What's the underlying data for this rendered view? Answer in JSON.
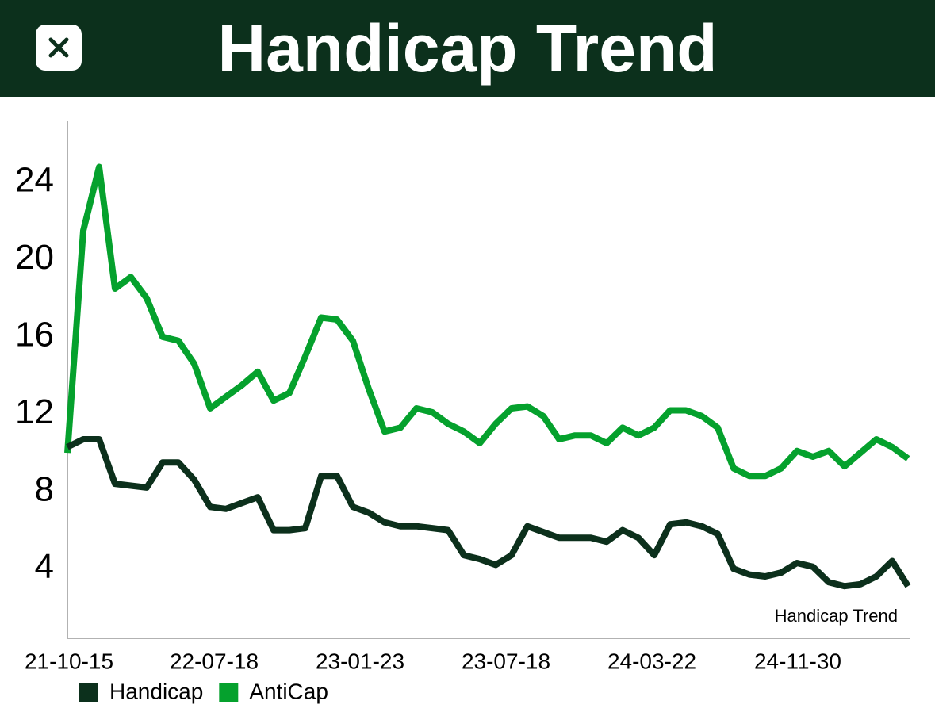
{
  "header": {
    "title": "Handicap Trend"
  },
  "chart_data": {
    "type": "line",
    "annotation": "Handicap Trend",
    "x": [
      0,
      1,
      2,
      3,
      4,
      5,
      6,
      7,
      8,
      9,
      10,
      11,
      12,
      13,
      14,
      15,
      16,
      17,
      18,
      19,
      20,
      21,
      22,
      23,
      24,
      25,
      26,
      27,
      28,
      29,
      30,
      31,
      32,
      33,
      34,
      35,
      36,
      37,
      38,
      39,
      40,
      41,
      42,
      43,
      44,
      45,
      46,
      47,
      48,
      49,
      50,
      51,
      52,
      53
    ],
    "xlim": [
      0,
      53.15
    ],
    "xticks": [
      {
        "value": 0,
        "label": "21-10-15"
      },
      {
        "value": 9.15,
        "label": "22-07-18"
      },
      {
        "value": 18.35,
        "label": "23-01-23"
      },
      {
        "value": 27.55,
        "label": "23-07-18"
      },
      {
        "value": 36.75,
        "label": "24-03-22"
      },
      {
        "value": 45.95,
        "label": "24-11-30"
      }
    ],
    "ylim": [
      0.4,
      27.2
    ],
    "yticks": [
      4,
      8,
      12,
      16,
      20,
      24
    ],
    "legend": "bottom-left",
    "series": [
      {
        "name": "Handicap",
        "color": "#0c301c",
        "values": [
          10.3,
          10.7,
          10.7,
          8.4,
          8.3,
          8.2,
          9.5,
          9.5,
          8.6,
          7.2,
          7.1,
          7.4,
          7.7,
          6.0,
          6.0,
          6.1,
          8.8,
          8.8,
          7.2,
          6.9,
          6.4,
          6.2,
          6.2,
          6.1,
          6.0,
          4.7,
          4.5,
          4.2,
          4.7,
          6.2,
          5.9,
          5.6,
          5.6,
          5.6,
          5.4,
          6.0,
          5.6,
          4.7,
          6.3,
          6.4,
          6.2,
          5.8,
          4.0,
          3.7,
          3.6,
          3.8,
          4.3,
          4.1,
          3.3,
          3.1,
          3.2,
          3.6,
          4.4,
          3.1
        ]
      },
      {
        "name": "AntiCap",
        "color": "#05a12d",
        "values": [
          10,
          21.5,
          24.8,
          18.5,
          19.1,
          18,
          16,
          15.8,
          14.6,
          12.3,
          12.9,
          13.5,
          14.2,
          12.7,
          13.1,
          15,
          17,
          16.9,
          15.8,
          13.3,
          11.1,
          11.3,
          12.3,
          12.1,
          11.5,
          11.1,
          10.5,
          11.5,
          12.3,
          12.4,
          11.9,
          10.7,
          10.9,
          10.9,
          10.5,
          11.3,
          10.9,
          11.3,
          12.2,
          12.2,
          11.9,
          11.3,
          9.2,
          8.8,
          8.8,
          9.2,
          10.1,
          9.8,
          10.1,
          9.3,
          10,
          10.7,
          10.3,
          9.7
        ]
      }
    ]
  }
}
